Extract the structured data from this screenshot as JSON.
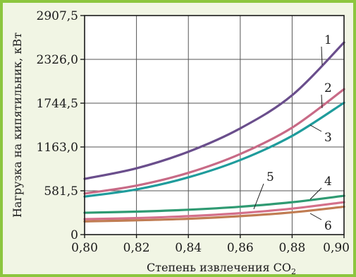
{
  "chart_data": {
    "type": "line",
    "xlabel": "Степень извлечения CO",
    "xlabel_subscript": "2",
    "ylabel": "Нагрузка на кипятильник, кВт",
    "xlim": [
      0.8,
      0.9
    ],
    "ylim": [
      0,
      2907.5
    ],
    "x_ticks": [
      0.8,
      0.82,
      0.84,
      0.86,
      0.88,
      0.9
    ],
    "x_tick_labels": [
      "0,80",
      "0,82",
      "0,84",
      "0,86",
      "0,88",
      "0,90"
    ],
    "y_ticks": [
      0,
      581.5,
      1163.0,
      1744.5,
      2326.0,
      2907.5
    ],
    "y_tick_labels": [
      "0",
      "581,5",
      "1163,0",
      "1744,5",
      "2326,0",
      "2907,5"
    ],
    "grid": true,
    "colors": {
      "series_1": "#6a4e8c",
      "series_2": "#c86a86",
      "series_3": "#1f9c9c",
      "series_4": "#2f9a72",
      "series_5": "#d4708a",
      "series_6": "#c07c52",
      "frame": "#8cc63f",
      "plot_bg": "#f1f5e4"
    },
    "x": [
      0.8,
      0.82,
      0.84,
      0.86,
      0.88,
      0.9
    ],
    "series": [
      {
        "name": "1",
        "values": [
          740,
          880,
          1100,
          1410,
          1850,
          2550
        ]
      },
      {
        "name": "2",
        "values": [
          545,
          650,
          820,
          1070,
          1420,
          1930
        ]
      },
      {
        "name": "3",
        "values": [
          505,
          600,
          760,
          990,
          1310,
          1750
        ]
      },
      {
        "name": "4",
        "values": [
          290,
          305,
          330,
          370,
          430,
          515
        ]
      },
      {
        "name": "5",
        "values": [
          205,
          220,
          245,
          285,
          345,
          430
        ]
      },
      {
        "name": "6",
        "values": [
          175,
          190,
          210,
          245,
          295,
          370
        ]
      }
    ],
    "curve_labels": [
      {
        "text": "1",
        "series": "1"
      },
      {
        "text": "2",
        "series": "2"
      },
      {
        "text": "3",
        "series": "3"
      },
      {
        "text": "4",
        "series": "4"
      },
      {
        "text": "5",
        "series": "5"
      },
      {
        "text": "6",
        "series": "6"
      }
    ]
  }
}
